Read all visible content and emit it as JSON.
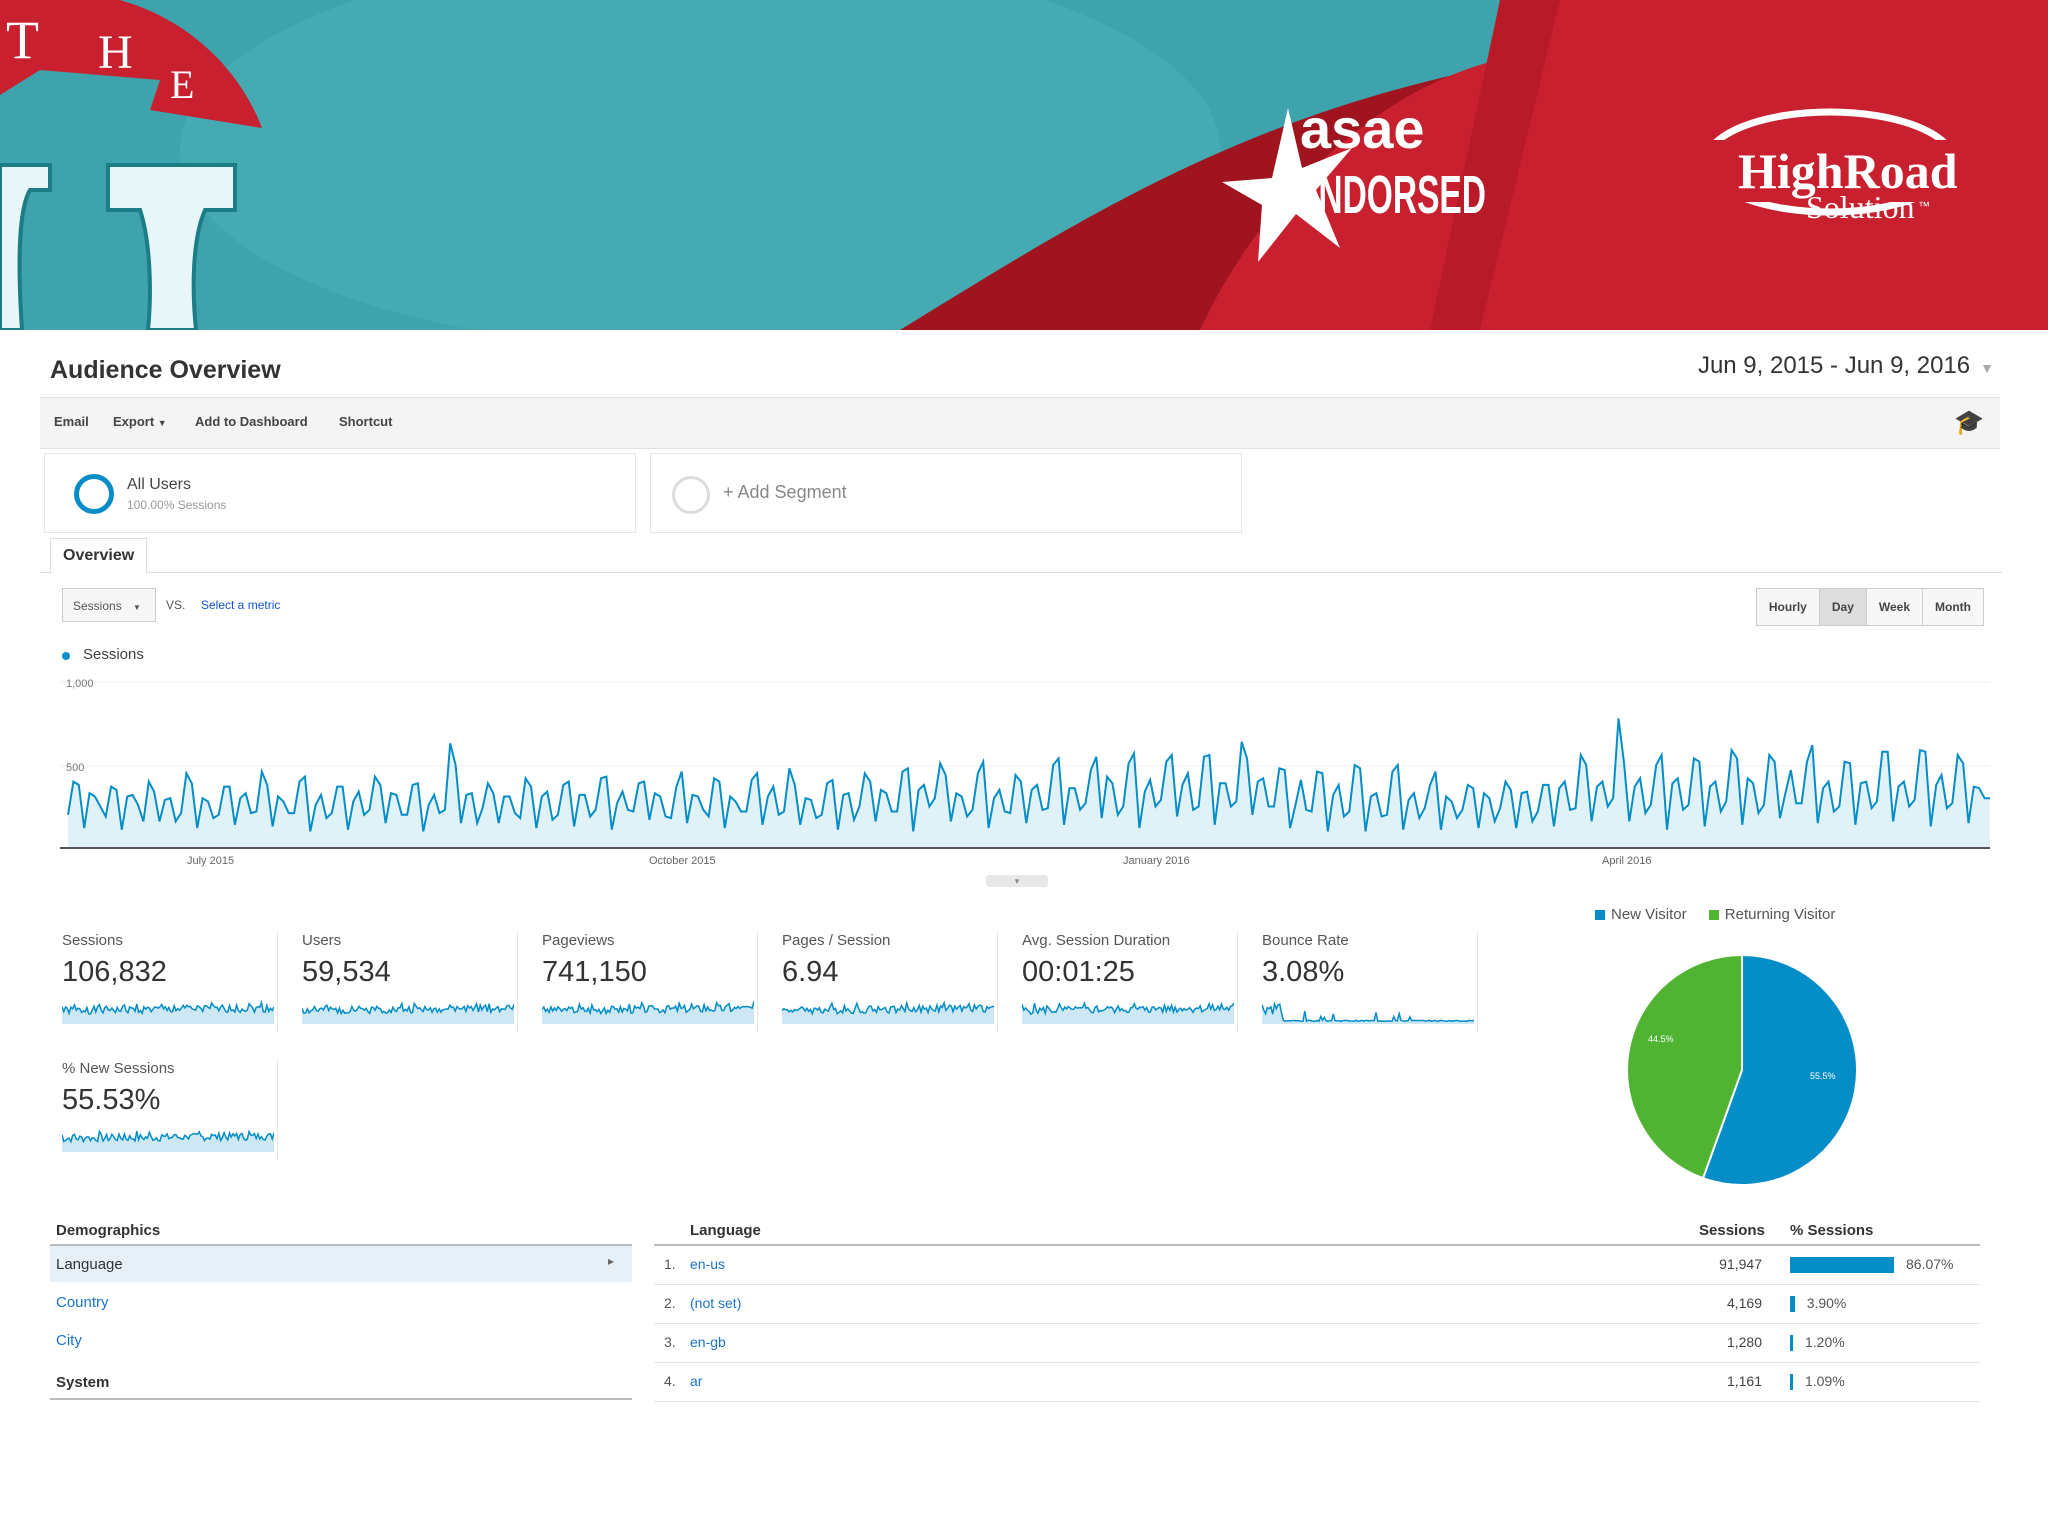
{
  "banner": {
    "letters": [
      "T",
      "H",
      "E"
    ],
    "asae_word": "asae",
    "endorsed_word": "ENDORSED",
    "brand_line1": "HighRoad",
    "brand_line2": "Solution",
    "brand_tm": "™",
    "colors": {
      "teal": "#3ea3ac",
      "red": "#c8202f",
      "dark_red": "#a0141f"
    }
  },
  "header": {
    "title": "Audience Overview",
    "date_range": "Jun 9, 2015 - Jun 9, 2016"
  },
  "toolbar": {
    "email": "Email",
    "export": "Export",
    "add_to_dashboard": "Add to Dashboard",
    "shortcut": "Shortcut",
    "icon": "graduation-cap-icon"
  },
  "segments": {
    "all_users": "All Users",
    "all_users_sub": "100.00% Sessions",
    "add_segment": "+ Add Segment"
  },
  "tabs": {
    "overview": "Overview"
  },
  "controls": {
    "metric": "Sessions",
    "vs": "VS.",
    "select_metric": "Select a metric",
    "granularity": [
      "Hourly",
      "Day",
      "Week",
      "Month"
    ],
    "active_granularity": "Day"
  },
  "chart_data": {
    "type": "area",
    "series": [
      {
        "name": "Sessions",
        "color": "#058dc7"
      }
    ],
    "y_ticks": [
      "1,000",
      "500"
    ],
    "ylim": [
      0,
      1000
    ],
    "x_ticks": [
      "July 2015",
      "October 2015",
      "January 2016",
      "April 2016"
    ],
    "x_range": [
      "2015-06-09",
      "2016-06-09"
    ],
    "values": [
      200,
      400,
      380,
      120,
      330,
      310,
      250,
      190,
      370,
      350,
      110,
      310,
      320,
      260,
      160,
      400,
      340,
      160,
      290,
      300,
      160,
      210,
      450,
      390,
      120,
      300,
      280,
      180,
      200,
      370,
      370,
      140,
      300,
      330,
      210,
      220,
      460,
      380,
      130,
      310,
      280,
      210,
      210,
      400,
      430,
      100,
      260,
      320,
      180,
      210,
      370,
      370,
      110,
      280,
      340,
      200,
      230,
      430,
      380,
      150,
      330,
      320,
      200,
      200,
      380,
      390,
      100,
      260,
      320,
      210,
      230,
      630,
      500,
      150,
      320,
      330,
      150,
      240,
      390,
      330,
      150,
      310,
      310,
      210,
      180,
      420,
      370,
      120,
      310,
      340,
      170,
      200,
      380,
      400,
      130,
      320,
      320,
      190,
      230,
      420,
      430,
      110,
      270,
      340,
      230,
      220,
      390,
      400,
      170,
      330,
      310,
      190,
      180,
      370,
      460,
      150,
      320,
      310,
      230,
      190,
      420,
      400,
      120,
      310,
      280,
      220,
      220,
      410,
      450,
      140,
      310,
      370,
      200,
      220,
      480,
      380,
      140,
      300,
      290,
      180,
      200,
      390,
      410,
      110,
      320,
      330,
      170,
      250,
      450,
      400,
      160,
      350,
      330,
      220,
      220,
      460,
      480,
      100,
      350,
      380,
      250,
      300,
      510,
      440,
      160,
      330,
      310,
      190,
      230,
      450,
      520,
      120,
      300,
      350,
      220,
      210,
      440,
      400,
      150,
      350,
      380,
      230,
      240,
      500,
      540,
      140,
      360,
      360,
      230,
      270,
      470,
      550,
      180,
      430,
      390,
      200,
      250,
      510,
      570,
      120,
      340,
      410,
      250,
      290,
      520,
      560,
      190,
      380,
      450,
      230,
      250,
      550,
      560,
      140,
      390,
      390,
      250,
      280,
      640,
      540,
      200,
      400,
      420,
      250,
      250,
      480,
      470,
      120,
      260,
      410,
      230,
      220,
      460,
      450,
      100,
      320,
      380,
      190,
      220,
      500,
      480,
      100,
      310,
      330,
      190,
      200,
      460,
      500,
      110,
      290,
      330,
      180,
      240,
      380,
      460,
      110,
      310,
      280,
      180,
      230,
      380,
      360,
      120,
      330,
      300,
      160,
      240,
      400,
      350,
      120,
      330,
      340,
      160,
      220,
      380,
      380,
      130,
      360,
      400,
      230,
      240,
      560,
      500,
      160,
      370,
      400,
      250,
      300,
      780,
      520,
      160,
      370,
      420,
      210,
      260,
      500,
      560,
      110,
      390,
      420,
      230,
      260,
      540,
      520,
      130,
      370,
      400,
      220,
      280,
      590,
      540,
      140,
      420,
      390,
      210,
      260,
      560,
      520,
      180,
      330,
      470,
      270,
      270,
      520,
      620,
      150,
      360,
      400,
      220,
      250,
      520,
      510,
      140,
      390,
      400,
      240,
      280,
      580,
      580,
      160,
      370,
      400,
      250,
      290,
      590,
      580,
      130,
      380,
      440,
      240,
      270,
      560,
      510,
      150,
      370,
      360,
      300,
      300
    ]
  },
  "metrics": [
    {
      "label": "Sessions",
      "value": "106,832"
    },
    {
      "label": "Users",
      "value": "59,534"
    },
    {
      "label": "Pageviews",
      "value": "741,150"
    },
    {
      "label": "Pages / Session",
      "value": "6.94"
    },
    {
      "label": "Avg. Session Duration",
      "value": "00:01:25"
    },
    {
      "label": "Bounce Rate",
      "value": "3.08%"
    },
    {
      "label": "% New Sessions",
      "value": "55.53%"
    }
  ],
  "pie": {
    "legend": [
      {
        "name": "New Visitor",
        "color": "#058dc7"
      },
      {
        "name": "Returning Visitor",
        "color": "#50b432"
      }
    ],
    "new_label": "55.5%",
    "returning_label": "44.5%"
  },
  "pie_data": {
    "type": "pie",
    "slices": [
      {
        "name": "New Visitor",
        "value": 55.5,
        "color": "#058dc7"
      },
      {
        "name": "Returning Visitor",
        "value": 44.5,
        "color": "#50b432"
      }
    ]
  },
  "demographics": {
    "heading": "Demographics",
    "language": "Language",
    "country": "Country",
    "city": "City",
    "system": "System"
  },
  "language_table": {
    "heading": "Language",
    "sessions_header": "Sessions",
    "pct_header": "% Sessions",
    "rows": [
      {
        "rank": "1.",
        "name": "en-us",
        "sessions": "91,947",
        "pct": "86.07%",
        "pct_value": 86.07
      },
      {
        "rank": "2.",
        "name": "(not set)",
        "sessions": "4,169",
        "pct": "3.90%",
        "pct_value": 3.9
      },
      {
        "rank": "3.",
        "name": "en-gb",
        "sessions": "1,280",
        "pct": "1.20%",
        "pct_value": 1.2
      },
      {
        "rank": "4.",
        "name": "ar",
        "sessions": "1,161",
        "pct": "1.09%",
        "pct_value": 1.09
      }
    ]
  }
}
